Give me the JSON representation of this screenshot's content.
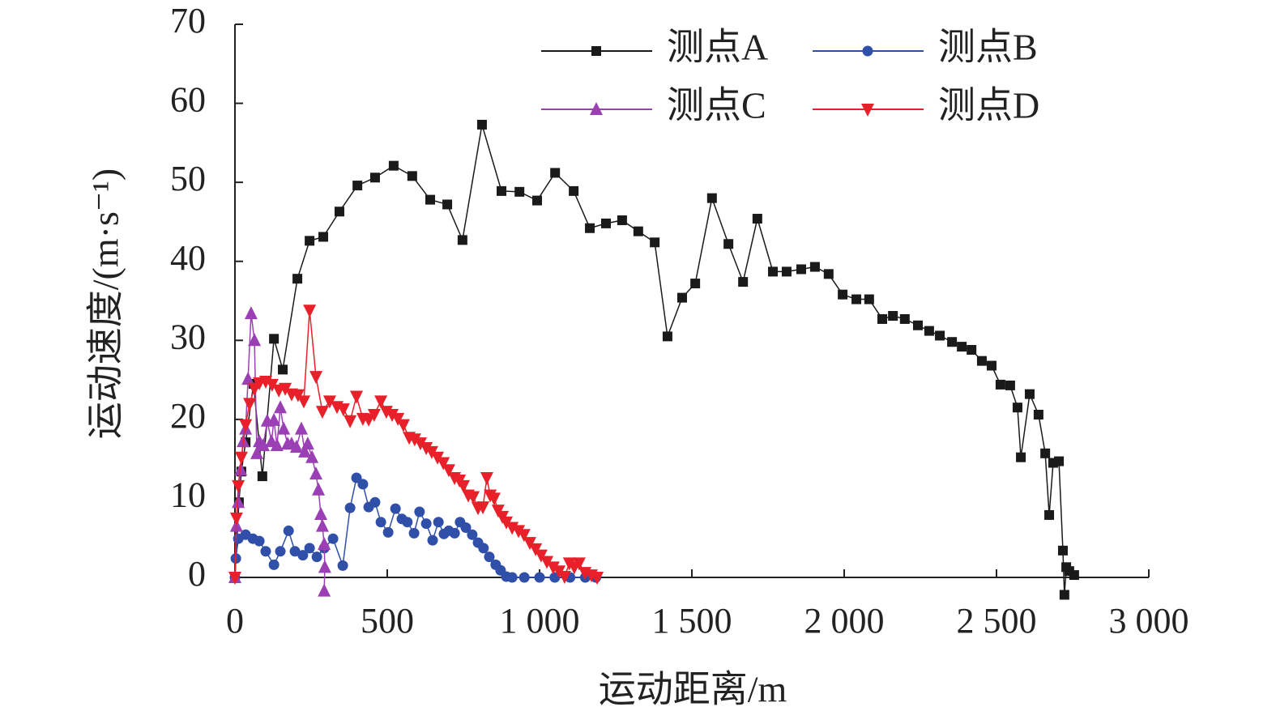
{
  "chart_data": {
    "type": "line",
    "xlabel": "运动距离/m",
    "ylabel": "运动速度/(m·s⁻¹)",
    "xlim": [
      0,
      3000
    ],
    "ylim": [
      0,
      70
    ],
    "xticks": [
      0,
      500,
      {
        "value": 1000,
        "label": "1 000"
      },
      {
        "value": 1500,
        "label": "1 500"
      },
      {
        "value": 2000,
        "label": "2 000"
      },
      {
        "value": 2500,
        "label": "2 500"
      },
      {
        "value": 3000,
        "label": "3 000"
      }
    ],
    "yticks": [
      0,
      10,
      20,
      30,
      40,
      50,
      60,
      70
    ],
    "legend": "top-right",
    "series": [
      {
        "name": "测点A",
        "color": "#1a1a1a",
        "marker": "square",
        "x": [
          0,
          13,
          21,
          35,
          61,
          90,
          128,
          157,
          205,
          245,
          290,
          343,
          402,
          460,
          521,
          582,
          641,
          697,
          747,
          811,
          875,
          934,
          992,
          1051,
          1112,
          1165,
          1218,
          1271,
          1324,
          1378,
          1420,
          1468,
          1511,
          1566,
          1620,
          1668,
          1715,
          1766,
          1811,
          1859,
          1904,
          1949,
          1995,
          2040,
          2082,
          2125,
          2160,
          2199,
          2242,
          2279,
          2314,
          2354,
          2386,
          2418,
          2452,
          2484,
          2513,
          2545,
          2569,
          2580,
          2609,
          2638,
          2660,
          2673,
          2686,
          2705,
          2718,
          2723,
          2729,
          2739,
          2755
        ],
        "values": [
          0,
          9.5,
          13.4,
          17.1,
          24.5,
          12.8,
          30.2,
          26.3,
          37.8,
          42.6,
          43.1,
          46.3,
          49.6,
          50.6,
          52.1,
          50.8,
          47.8,
          47.2,
          42.7,
          57.3,
          48.9,
          48.8,
          47.7,
          51.2,
          48.9,
          44.2,
          44.8,
          45.2,
          43.8,
          42.4,
          30.5,
          35.4,
          37.2,
          48,
          42.2,
          37.4,
          45.4,
          38.7,
          38.7,
          39,
          39.3,
          38.4,
          35.8,
          35.2,
          35.2,
          32.7,
          33.1,
          32.7,
          31.9,
          31.2,
          30.6,
          29.8,
          29.2,
          28.8,
          27.4,
          26.8,
          24.4,
          24.3,
          21.5,
          15.2,
          23.2,
          20.6,
          15.7,
          7.9,
          14.5,
          14.7,
          3.4,
          -2.2,
          1.3,
          0.8,
          0.3
        ]
      },
      {
        "name": "测点B",
        "color": "#2f4fa8",
        "marker": "circle",
        "x": [
          0,
          3,
          11,
          35,
          59,
          80,
          101,
          128,
          149,
          176,
          197,
          223,
          245,
          269,
          293,
          322,
          354,
          378,
          399,
          420,
          439,
          460,
          479,
          503,
          527,
          548,
          566,
          588,
          606,
          628,
          649,
          668,
          686,
          702,
          721,
          739,
          758,
          779,
          798,
          816,
          835,
          856,
          872,
          891,
          910,
          950,
          1000,
          1050,
          1100,
          1150,
          1185
        ],
        "values": [
          0,
          2.4,
          4.9,
          5.4,
          4.9,
          4.6,
          3.3,
          1.6,
          3.3,
          5.9,
          3.3,
          2.8,
          3.7,
          2.6,
          3.7,
          4.9,
          1.5,
          8.8,
          12.6,
          11.8,
          8.9,
          9.5,
          7,
          5.7,
          8.7,
          7.4,
          7,
          5.6,
          8.3,
          6.8,
          4.7,
          7,
          5.5,
          5.9,
          5.6,
          7,
          6.3,
          5.4,
          4.4,
          3.7,
          2.6,
          1.6,
          0.9,
          0.1,
          0,
          0,
          0,
          0,
          0,
          0,
          0
        ]
      },
      {
        "name": "测点C",
        "color": "#9b3fb5",
        "marker": "triangle-up",
        "x": [
          0,
          5,
          11,
          19,
          27,
          35,
          43,
          53,
          64,
          72,
          80,
          93,
          106,
          120,
          128,
          138,
          149,
          160,
          173,
          186,
          202,
          218,
          229,
          239,
          253,
          266,
          274,
          282,
          287,
          293,
          295,
          293
        ],
        "values": [
          0,
          6.5,
          9.5,
          13.6,
          17.2,
          18.8,
          25.1,
          33.4,
          30,
          15.7,
          17.2,
          16.7,
          19.8,
          17.2,
          19.9,
          16.7,
          21.5,
          18.8,
          16.9,
          16.9,
          16.5,
          18.8,
          15.9,
          16.9,
          15.2,
          13.1,
          11.1,
          8,
          6.5,
          4.2,
          1.3,
          -1.7
        ]
      },
      {
        "name": "测点D",
        "color": "#e8202a",
        "marker": "triangle-down",
        "x": [
          0,
          5,
          11,
          21,
          35,
          48,
          64,
          80,
          101,
          122,
          144,
          165,
          186,
          207,
          226,
          245,
          266,
          287,
          311,
          335,
          356,
          378,
          399,
          420,
          439,
          457,
          479,
          497,
          516,
          535,
          553,
          572,
          590,
          609,
          628,
          646,
          665,
          684,
          702,
          721,
          737,
          750,
          766,
          782,
          798,
          814,
          827,
          838,
          851,
          864,
          878,
          891,
          910,
          931,
          949,
          968,
          987,
          1005,
          1024,
          1045,
          1064,
          1082,
          1098,
          1114,
          1130,
          1149,
          1170,
          1189
        ],
        "values": [
          0,
          7.5,
          11.6,
          15.2,
          19.3,
          22,
          23.9,
          24.6,
          24.8,
          24.4,
          23.7,
          23.9,
          23.2,
          23.1,
          22.3,
          33.8,
          25.4,
          21,
          22.3,
          21.6,
          21.3,
          19.8,
          22.9,
          20.1,
          20,
          20.6,
          22.3,
          21,
          20.6,
          20.1,
          19.3,
          17.7,
          17.5,
          17,
          16.4,
          15.9,
          15.2,
          14.5,
          13.6,
          12.6,
          12.3,
          11.6,
          10.4,
          10.2,
          8.8,
          8.9,
          12.6,
          10.4,
          10,
          8.5,
          7.7,
          7,
          6.3,
          5.9,
          5.4,
          4.4,
          3.6,
          2.8,
          2,
          1.3,
          0.8,
          0.1,
          1.8,
          1.3,
          1.8,
          0.6,
          0.3,
          0
        ]
      }
    ]
  }
}
